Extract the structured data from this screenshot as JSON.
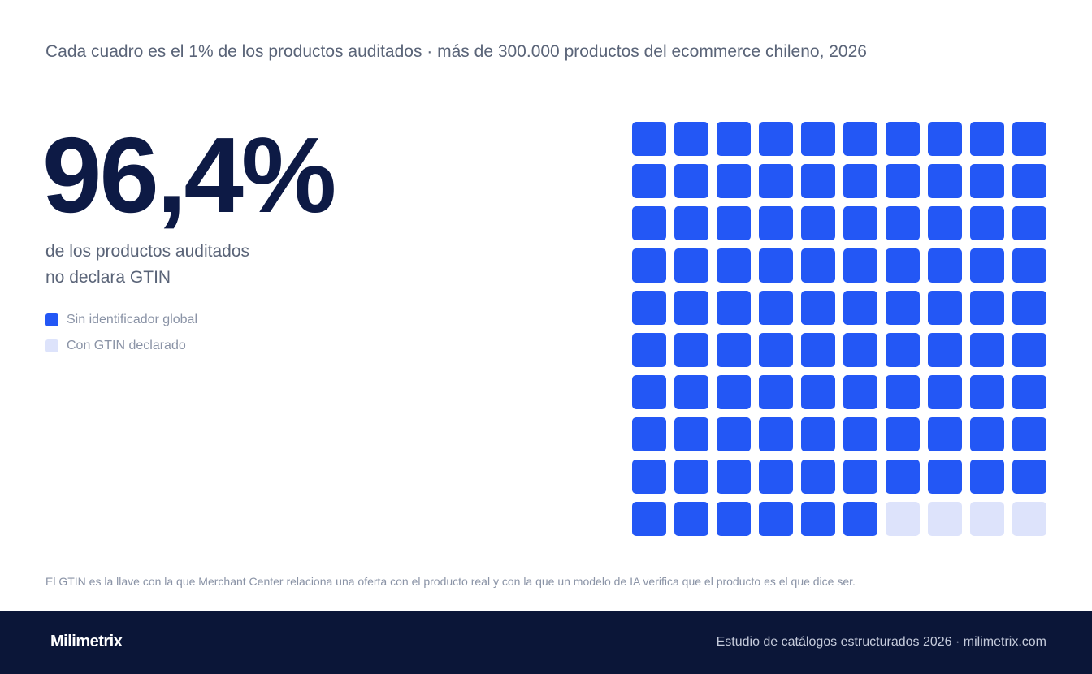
{
  "header": {
    "subtitle": "Cada cuadro es el 1% de los productos auditados · más de 300.000 productos del ecommerce chileno, 2026"
  },
  "headline": {
    "value": "96,4%",
    "line1": "de los productos auditados",
    "line2": "no declara GTIN"
  },
  "colors": {
    "without_gtin": "#2357f5",
    "with_gtin": "#dde3fb"
  },
  "chart_data": {
    "type": "waffle",
    "grid": [
      10,
      10
    ],
    "unit": "1% de los productos auditados",
    "series": [
      {
        "name": "Sin identificador global",
        "cells": 96
      },
      {
        "name": "Con GTIN declarado",
        "cells": 4
      }
    ]
  },
  "footnote": "El GTIN es la llave con la que Merchant Center relaciona una oferta con el producto real y con la que un modelo de IA verifica que el producto es el que dice ser.",
  "footer": {
    "brand": "Milimetrix",
    "credit": "Estudio de catálogos estructurados 2026 · milimetrix.com"
  }
}
